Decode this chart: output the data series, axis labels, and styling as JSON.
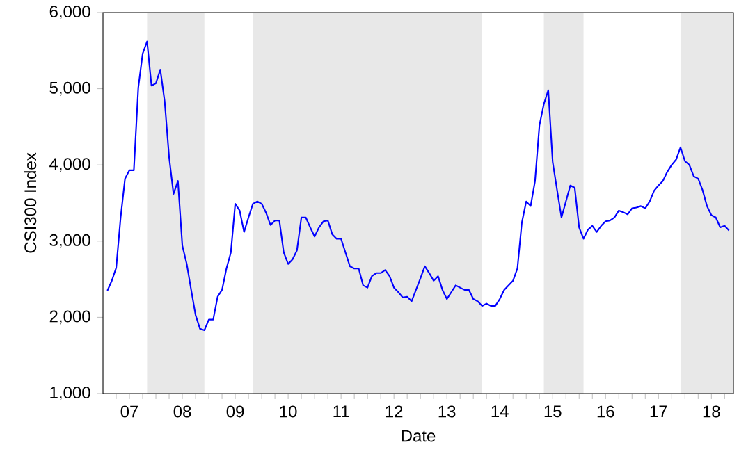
{
  "chart_data": {
    "type": "line",
    "xlabel": "Date",
    "ylabel": "CSI300 Index",
    "x": [
      "2007-02",
      "2007-03",
      "2007-04",
      "2007-05",
      "2007-06",
      "2007-07",
      "2007-08",
      "2007-09",
      "2007-10",
      "2007-11",
      "2007-12",
      "2008-01",
      "2008-02",
      "2008-03",
      "2008-04",
      "2008-05",
      "2008-06",
      "2008-07",
      "2008-08",
      "2008-09",
      "2008-10",
      "2008-11",
      "2008-12",
      "2009-01",
      "2009-02",
      "2009-03",
      "2009-04",
      "2009-05",
      "2009-06",
      "2009-07",
      "2009-08",
      "2009-09",
      "2009-10",
      "2009-11",
      "2009-12",
      "2010-01",
      "2010-02",
      "2010-03",
      "2010-04",
      "2010-05",
      "2010-06",
      "2010-07",
      "2010-08",
      "2010-09",
      "2010-10",
      "2010-11",
      "2010-12",
      "2011-01",
      "2011-02",
      "2011-03",
      "2011-04",
      "2011-05",
      "2011-06",
      "2011-07",
      "2011-08",
      "2011-09",
      "2011-10",
      "2011-11",
      "2011-12",
      "2012-01",
      "2012-02",
      "2012-03",
      "2012-04",
      "2012-05",
      "2012-06",
      "2012-07",
      "2012-08",
      "2012-09",
      "2012-10",
      "2012-11",
      "2012-12",
      "2013-01",
      "2013-02",
      "2013-03",
      "2013-04",
      "2013-05",
      "2013-06",
      "2013-07",
      "2013-08",
      "2013-09",
      "2013-10",
      "2013-11",
      "2013-12",
      "2014-01",
      "2014-02",
      "2014-03",
      "2014-04",
      "2014-05",
      "2014-06",
      "2014-07",
      "2014-08",
      "2014-09",
      "2014-10",
      "2014-11",
      "2014-12",
      "2015-01",
      "2015-02",
      "2015-03",
      "2015-04",
      "2015-05",
      "2015-06",
      "2015-07",
      "2015-08",
      "2015-09",
      "2015-10",
      "2015-11",
      "2015-12",
      "2016-01",
      "2016-02",
      "2016-03",
      "2016-04",
      "2016-05",
      "2016-06",
      "2016-07",
      "2016-08",
      "2016-09",
      "2016-10",
      "2016-11",
      "2016-12",
      "2017-01",
      "2017-02",
      "2017-03",
      "2017-04",
      "2017-05",
      "2017-06",
      "2017-07",
      "2017-08",
      "2017-09",
      "2017-10",
      "2017-11",
      "2017-12",
      "2018-01",
      "2018-02",
      "2018-03",
      "2018-04",
      "2018-05",
      "2018-06",
      "2018-07",
      "2018-08",
      "2018-09",
      "2018-10",
      "2018-11"
    ],
    "series": [
      {
        "color": "#0000ff",
        "values": [
          2350,
          2480,
          2650,
          3310,
          3820,
          3930,
          3930,
          5010,
          5460,
          5620,
          5040,
          5070,
          5250,
          4830,
          4100,
          3620,
          3790,
          2940,
          2700,
          2360,
          2030,
          1850,
          1830,
          1970,
          1970,
          2270,
          2360,
          2640,
          2850,
          3490,
          3400,
          3120,
          3310,
          3490,
          3520,
          3490,
          3370,
          3210,
          3270,
          3270,
          2850,
          2700,
          2760,
          2880,
          3310,
          3310,
          3180,
          3060,
          3180,
          3260,
          3270,
          3090,
          3030,
          3030,
          2850,
          2670,
          2640,
          2640,
          2420,
          2390,
          2540,
          2580,
          2580,
          2620,
          2540,
          2390,
          2330,
          2260,
          2270,
          2210,
          2360,
          2510,
          2670,
          2580,
          2480,
          2540,
          2360,
          2240,
          2330,
          2420,
          2390,
          2360,
          2360,
          2240,
          2210,
          2150,
          2180,
          2150,
          2150,
          2240,
          2360,
          2420,
          2480,
          2640,
          3240,
          3520,
          3460,
          3790,
          4520,
          4800,
          4980,
          4040,
          3670,
          3310,
          3520,
          3730,
          3700,
          3180,
          3030,
          3150,
          3200,
          3120,
          3200,
          3260,
          3270,
          3310,
          3400,
          3380,
          3350,
          3430,
          3440,
          3460,
          3430,
          3520,
          3660,
          3730,
          3790,
          3910,
          4000,
          4070,
          4230,
          4050,
          4000,
          3850,
          3820,
          3670,
          3460,
          3340,
          3310,
          3180,
          3200,
          3140
        ]
      }
    ],
    "xlim": [
      "2007-01",
      "2018-12"
    ],
    "xticks": [
      {
        "value": "2007-04",
        "label": null
      },
      {
        "value": "2007-07",
        "label": "07"
      },
      {
        "value": "2007-10",
        "label": null
      },
      {
        "value": "2008-01",
        "label": null
      },
      {
        "value": "2008-04",
        "label": null
      },
      {
        "value": "2008-07",
        "label": "08"
      },
      {
        "value": "2008-10",
        "label": null
      },
      {
        "value": "2009-01",
        "label": null
      },
      {
        "value": "2009-04",
        "label": null
      },
      {
        "value": "2009-07",
        "label": "09"
      },
      {
        "value": "2009-10",
        "label": null
      },
      {
        "value": "2010-01",
        "label": null
      },
      {
        "value": "2010-04",
        "label": null
      },
      {
        "value": "2010-07",
        "label": "10"
      },
      {
        "value": "2010-10",
        "label": null
      },
      {
        "value": "2011-01",
        "label": null
      },
      {
        "value": "2011-04",
        "label": null
      },
      {
        "value": "2011-07",
        "label": "11"
      },
      {
        "value": "2011-10",
        "label": null
      },
      {
        "value": "2012-01",
        "label": null
      },
      {
        "value": "2012-04",
        "label": null
      },
      {
        "value": "2012-07",
        "label": "12"
      },
      {
        "value": "2012-10",
        "label": null
      },
      {
        "value": "2013-01",
        "label": null
      },
      {
        "value": "2013-04",
        "label": null
      },
      {
        "value": "2013-07",
        "label": "13"
      },
      {
        "value": "2013-10",
        "label": null
      },
      {
        "value": "2014-01",
        "label": null
      },
      {
        "value": "2014-04",
        "label": null
      },
      {
        "value": "2014-07",
        "label": "14"
      },
      {
        "value": "2014-10",
        "label": null
      },
      {
        "value": "2015-01",
        "label": null
      },
      {
        "value": "2015-04",
        "label": null
      },
      {
        "value": "2015-07",
        "label": "15"
      },
      {
        "value": "2015-10",
        "label": null
      },
      {
        "value": "2016-01",
        "label": null
      },
      {
        "value": "2016-04",
        "label": null
      },
      {
        "value": "2016-07",
        "label": "16"
      },
      {
        "value": "2016-10",
        "label": null
      },
      {
        "value": "2017-01",
        "label": null
      },
      {
        "value": "2017-04",
        "label": null
      },
      {
        "value": "2017-07",
        "label": "17"
      },
      {
        "value": "2017-10",
        "label": null
      },
      {
        "value": "2018-01",
        "label": null
      },
      {
        "value": "2018-04",
        "label": null
      },
      {
        "value": "2018-07",
        "label": "18"
      },
      {
        "value": "2018-10",
        "label": null
      }
    ],
    "ylim": [
      1000,
      6000
    ],
    "yticks": [
      {
        "value": 1000,
        "label": "1,000"
      },
      {
        "value": 2000,
        "label": "2,000"
      },
      {
        "value": 3000,
        "label": "3,000"
      },
      {
        "value": 4000,
        "label": "4,000"
      },
      {
        "value": 5000,
        "label": "5,000"
      },
      {
        "value": 6000,
        "label": "6,000"
      }
    ],
    "bands": [
      {
        "axis": "x",
        "from": "2007-11",
        "to": "2008-12",
        "color": "#e8e8e8"
      },
      {
        "axis": "x",
        "from": "2009-11",
        "to": "2014-03",
        "color": "#e8e8e8"
      },
      {
        "axis": "x",
        "from": "2015-05",
        "to": "2016-02",
        "color": "#e8e8e8"
      },
      {
        "axis": "x",
        "from": "2017-12",
        "to": "2018-12",
        "color": "#e8e8e8"
      }
    ],
    "grid": false,
    "legend": false
  }
}
